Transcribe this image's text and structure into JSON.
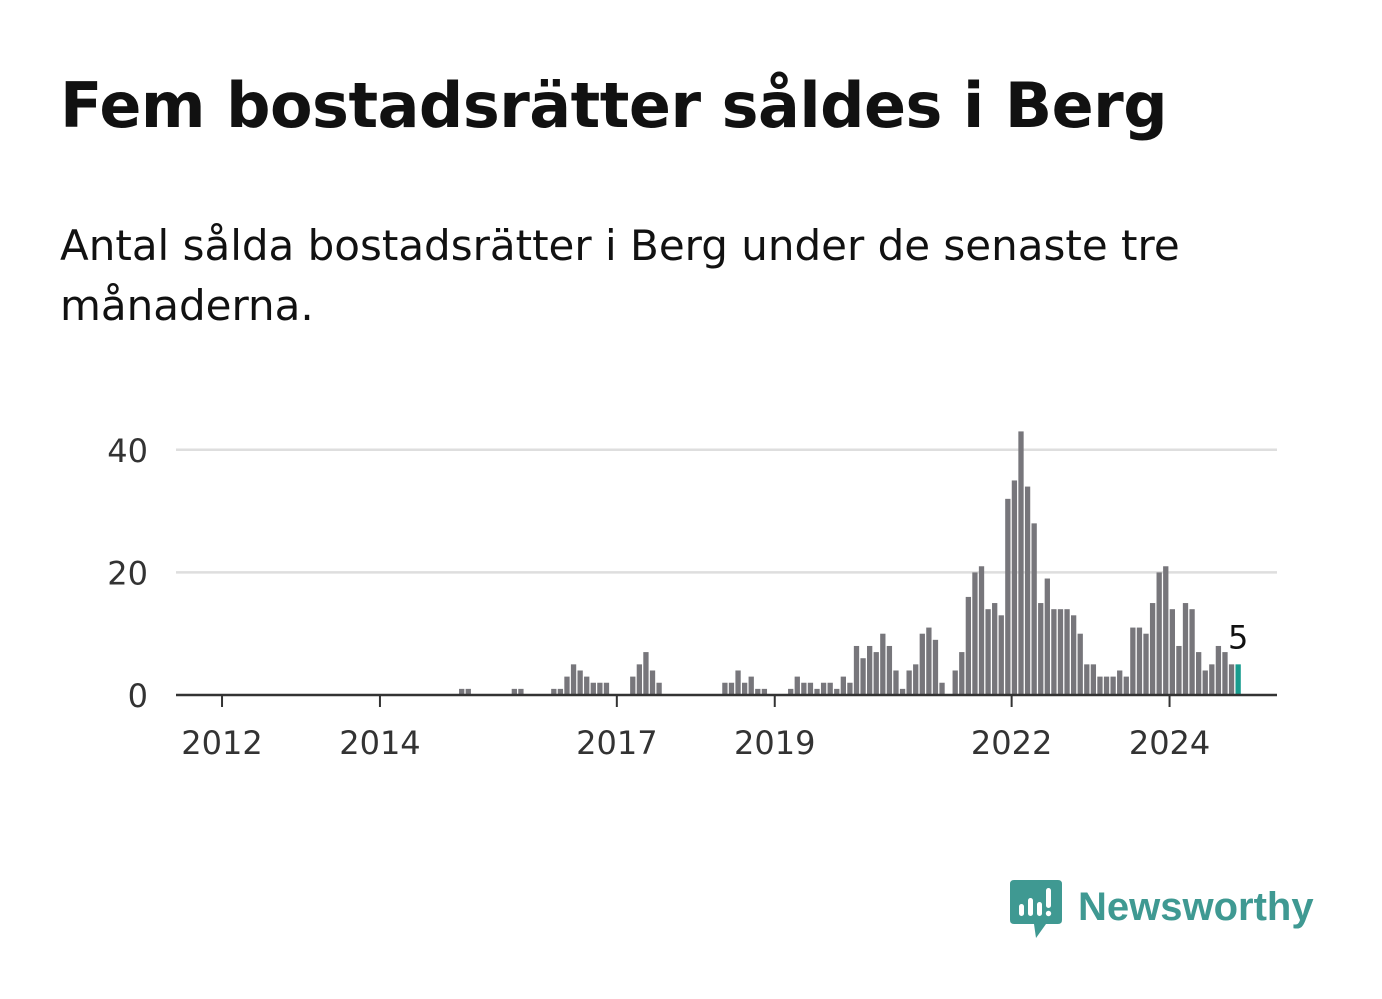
{
  "title": "Fem bostadsrätter såldes i Berg",
  "subtitle": "Antal sålda bostadsrätter i Berg under de senaste tre månaderna.",
  "brand": {
    "name": "Newsworthy",
    "color": "#3f9992",
    "icon": "newsworthy-logo-icon"
  },
  "chart_data": {
    "type": "bar",
    "title": "Fem bostadsrätter såldes i Berg",
    "subtitle": "Antal sålda bostadsrätter i Berg under de senaste tre månaderna.",
    "xlabel": "",
    "ylabel": "",
    "ylim": [
      0,
      46
    ],
    "y_ticks": [
      0,
      20,
      40
    ],
    "x_ticks": [
      "2012",
      "2014",
      "2017",
      "2019",
      "2022",
      "2024"
    ],
    "grid": true,
    "bar_color": "#77767b",
    "highlight_color": "#179c8e",
    "highlight_label": "5",
    "x_start": "2011-09",
    "x_step": "1 month",
    "values": [
      0,
      0,
      0,
      0,
      0,
      0,
      0,
      0,
      0,
      0,
      0,
      0,
      0,
      0,
      0,
      0,
      0,
      0,
      0,
      0,
      0,
      0,
      0,
      0,
      0,
      0,
      0,
      0,
      0,
      0,
      0,
      0,
      0,
      0,
      0,
      0,
      0,
      0,
      0,
      0,
      1,
      1,
      0,
      0,
      0,
      0,
      0,
      0,
      1,
      1,
      0,
      0,
      0,
      0,
      1,
      1,
      3,
      5,
      4,
      3,
      2,
      2,
      2,
      0,
      0,
      0,
      3,
      5,
      7,
      4,
      2,
      0,
      0,
      0,
      0,
      0,
      0,
      0,
      0,
      0,
      2,
      2,
      4,
      2,
      3,
      1,
      1,
      0,
      0,
      0,
      1,
      3,
      2,
      2,
      1,
      2,
      2,
      1,
      3,
      2,
      8,
      6,
      8,
      7,
      10,
      8,
      4,
      1,
      4,
      5,
      10,
      11,
      9,
      2,
      0,
      4,
      7,
      16,
      20,
      21,
      14,
      15,
      13,
      32,
      35,
      43,
      34,
      28,
      15,
      19,
      14,
      14,
      14,
      13,
      10,
      5,
      5,
      3,
      3,
      3,
      4,
      3,
      11,
      11,
      10,
      15,
      20,
      21,
      14,
      8,
      15,
      14,
      7,
      4,
      5,
      8,
      7,
      5,
      5
    ]
  }
}
